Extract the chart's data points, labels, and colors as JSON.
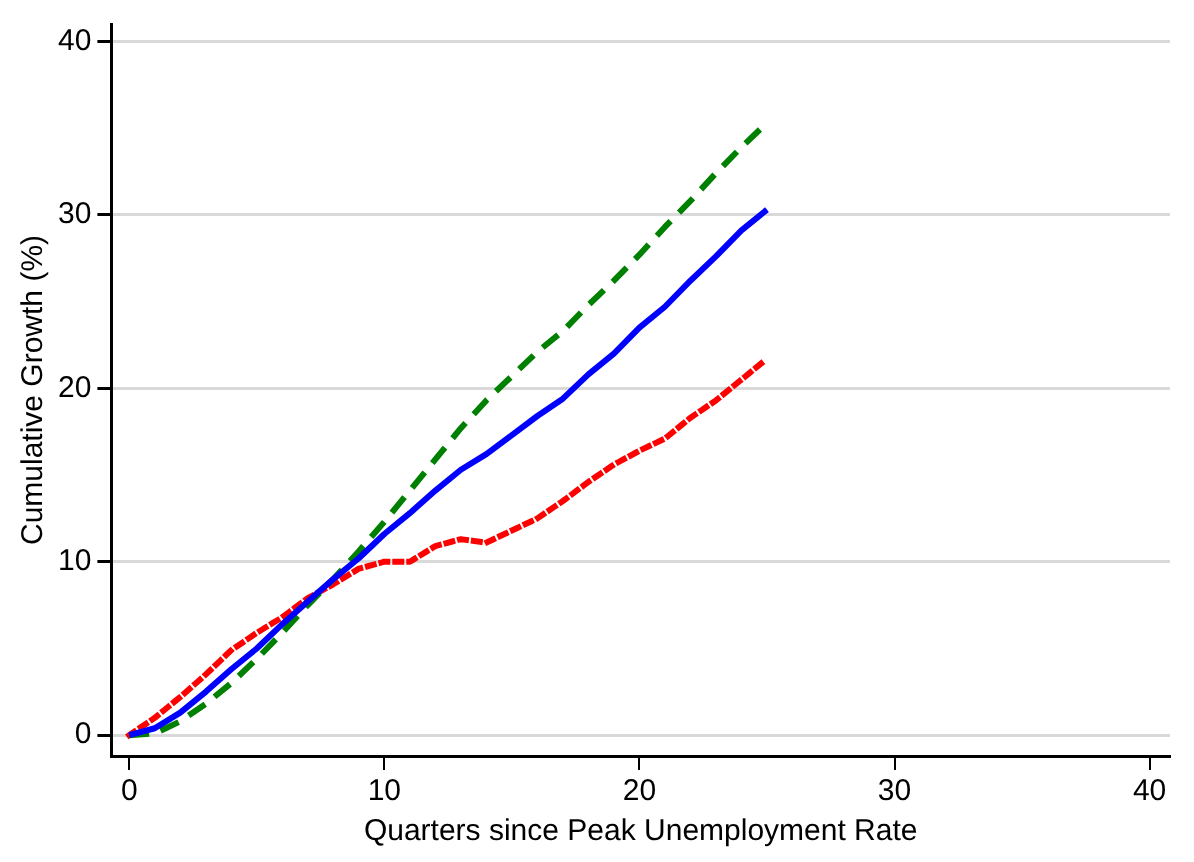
{
  "chart_data": {
    "type": "line",
    "xlabel": "Quarters since Peak Unemployment Rate",
    "ylabel": "Cumulative Growth (%)",
    "x": [
      0,
      1,
      2,
      3,
      4,
      5,
      6,
      7,
      8,
      9,
      10,
      11,
      12,
      13,
      14,
      15,
      16,
      17,
      18,
      19,
      20,
      21,
      22,
      23,
      24,
      25
    ],
    "series": [
      {
        "color": "#0000ff",
        "line_style": "solid",
        "values": [
          0,
          0.4,
          1.3,
          2.5,
          3.8,
          5.0,
          6.4,
          7.7,
          9.0,
          10.2,
          11.6,
          12.8,
          14.1,
          15.3,
          16.2,
          17.3,
          18.4,
          19.4,
          20.8,
          22.0,
          23.5,
          24.7,
          26.2,
          27.6,
          29.1,
          30.3
        ]
      },
      {
        "color": "#008000",
        "line_style": "dashed",
        "values": [
          0,
          0.1,
          0.8,
          1.8,
          3.0,
          4.4,
          5.9,
          7.5,
          9.0,
          10.6,
          12.3,
          14.1,
          15.9,
          17.7,
          19.3,
          20.7,
          22.1,
          23.3,
          24.8,
          26.2,
          27.7,
          29.3,
          30.8,
          32.4,
          33.9,
          35.3
        ]
      },
      {
        "color": "#ff0000",
        "line_style": "dotted",
        "values": [
          0,
          1.0,
          2.2,
          3.5,
          4.9,
          5.9,
          6.8,
          7.9,
          8.7,
          9.6,
          10.0,
          10.0,
          10.9,
          11.3,
          11.1,
          11.8,
          12.5,
          13.5,
          14.6,
          15.6,
          16.4,
          17.1,
          18.3,
          19.3,
          20.5,
          21.7
        ]
      }
    ],
    "xlim": [
      -0.7,
      40.8
    ],
    "ylim": [
      -1.2,
      41
    ],
    "xticks": [
      0,
      10,
      20,
      30,
      40
    ],
    "yticks": [
      0,
      10,
      20,
      30,
      40
    ],
    "grid": "y",
    "legend": false,
    "marker": "none"
  }
}
